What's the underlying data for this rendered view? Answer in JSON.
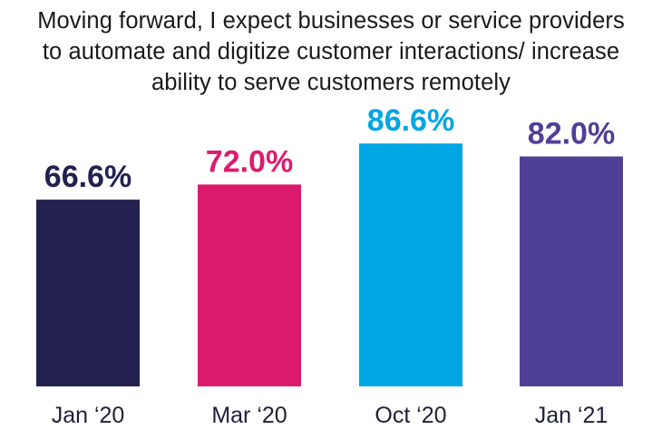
{
  "chart_data": {
    "type": "bar",
    "title_lines": [
      "Moving forward, I expect businesses or service providers",
      "to automate and digitize customer interactions/ increase",
      "ability to serve customers remotely"
    ],
    "categories": [
      "Jan ‘20",
      "Mar ‘20",
      "Oct ‘20",
      "Jan ‘21"
    ],
    "values": [
      66.6,
      72.0,
      86.6,
      82.0
    ],
    "value_labels": [
      "66.6%",
      "72.0%",
      "86.6%",
      "82.0%"
    ],
    "bar_colors": [
      "#22214f",
      "#dd1b6e",
      "#00a6e4",
      "#4f3f97"
    ],
    "label_colors": [
      "#22214f",
      "#dd1b6e",
      "#00a6e4",
      "#4f3f97"
    ],
    "xlabel": "",
    "ylabel": "",
    "ylim": [
      0,
      100
    ],
    "grid": false,
    "legend": "none"
  }
}
